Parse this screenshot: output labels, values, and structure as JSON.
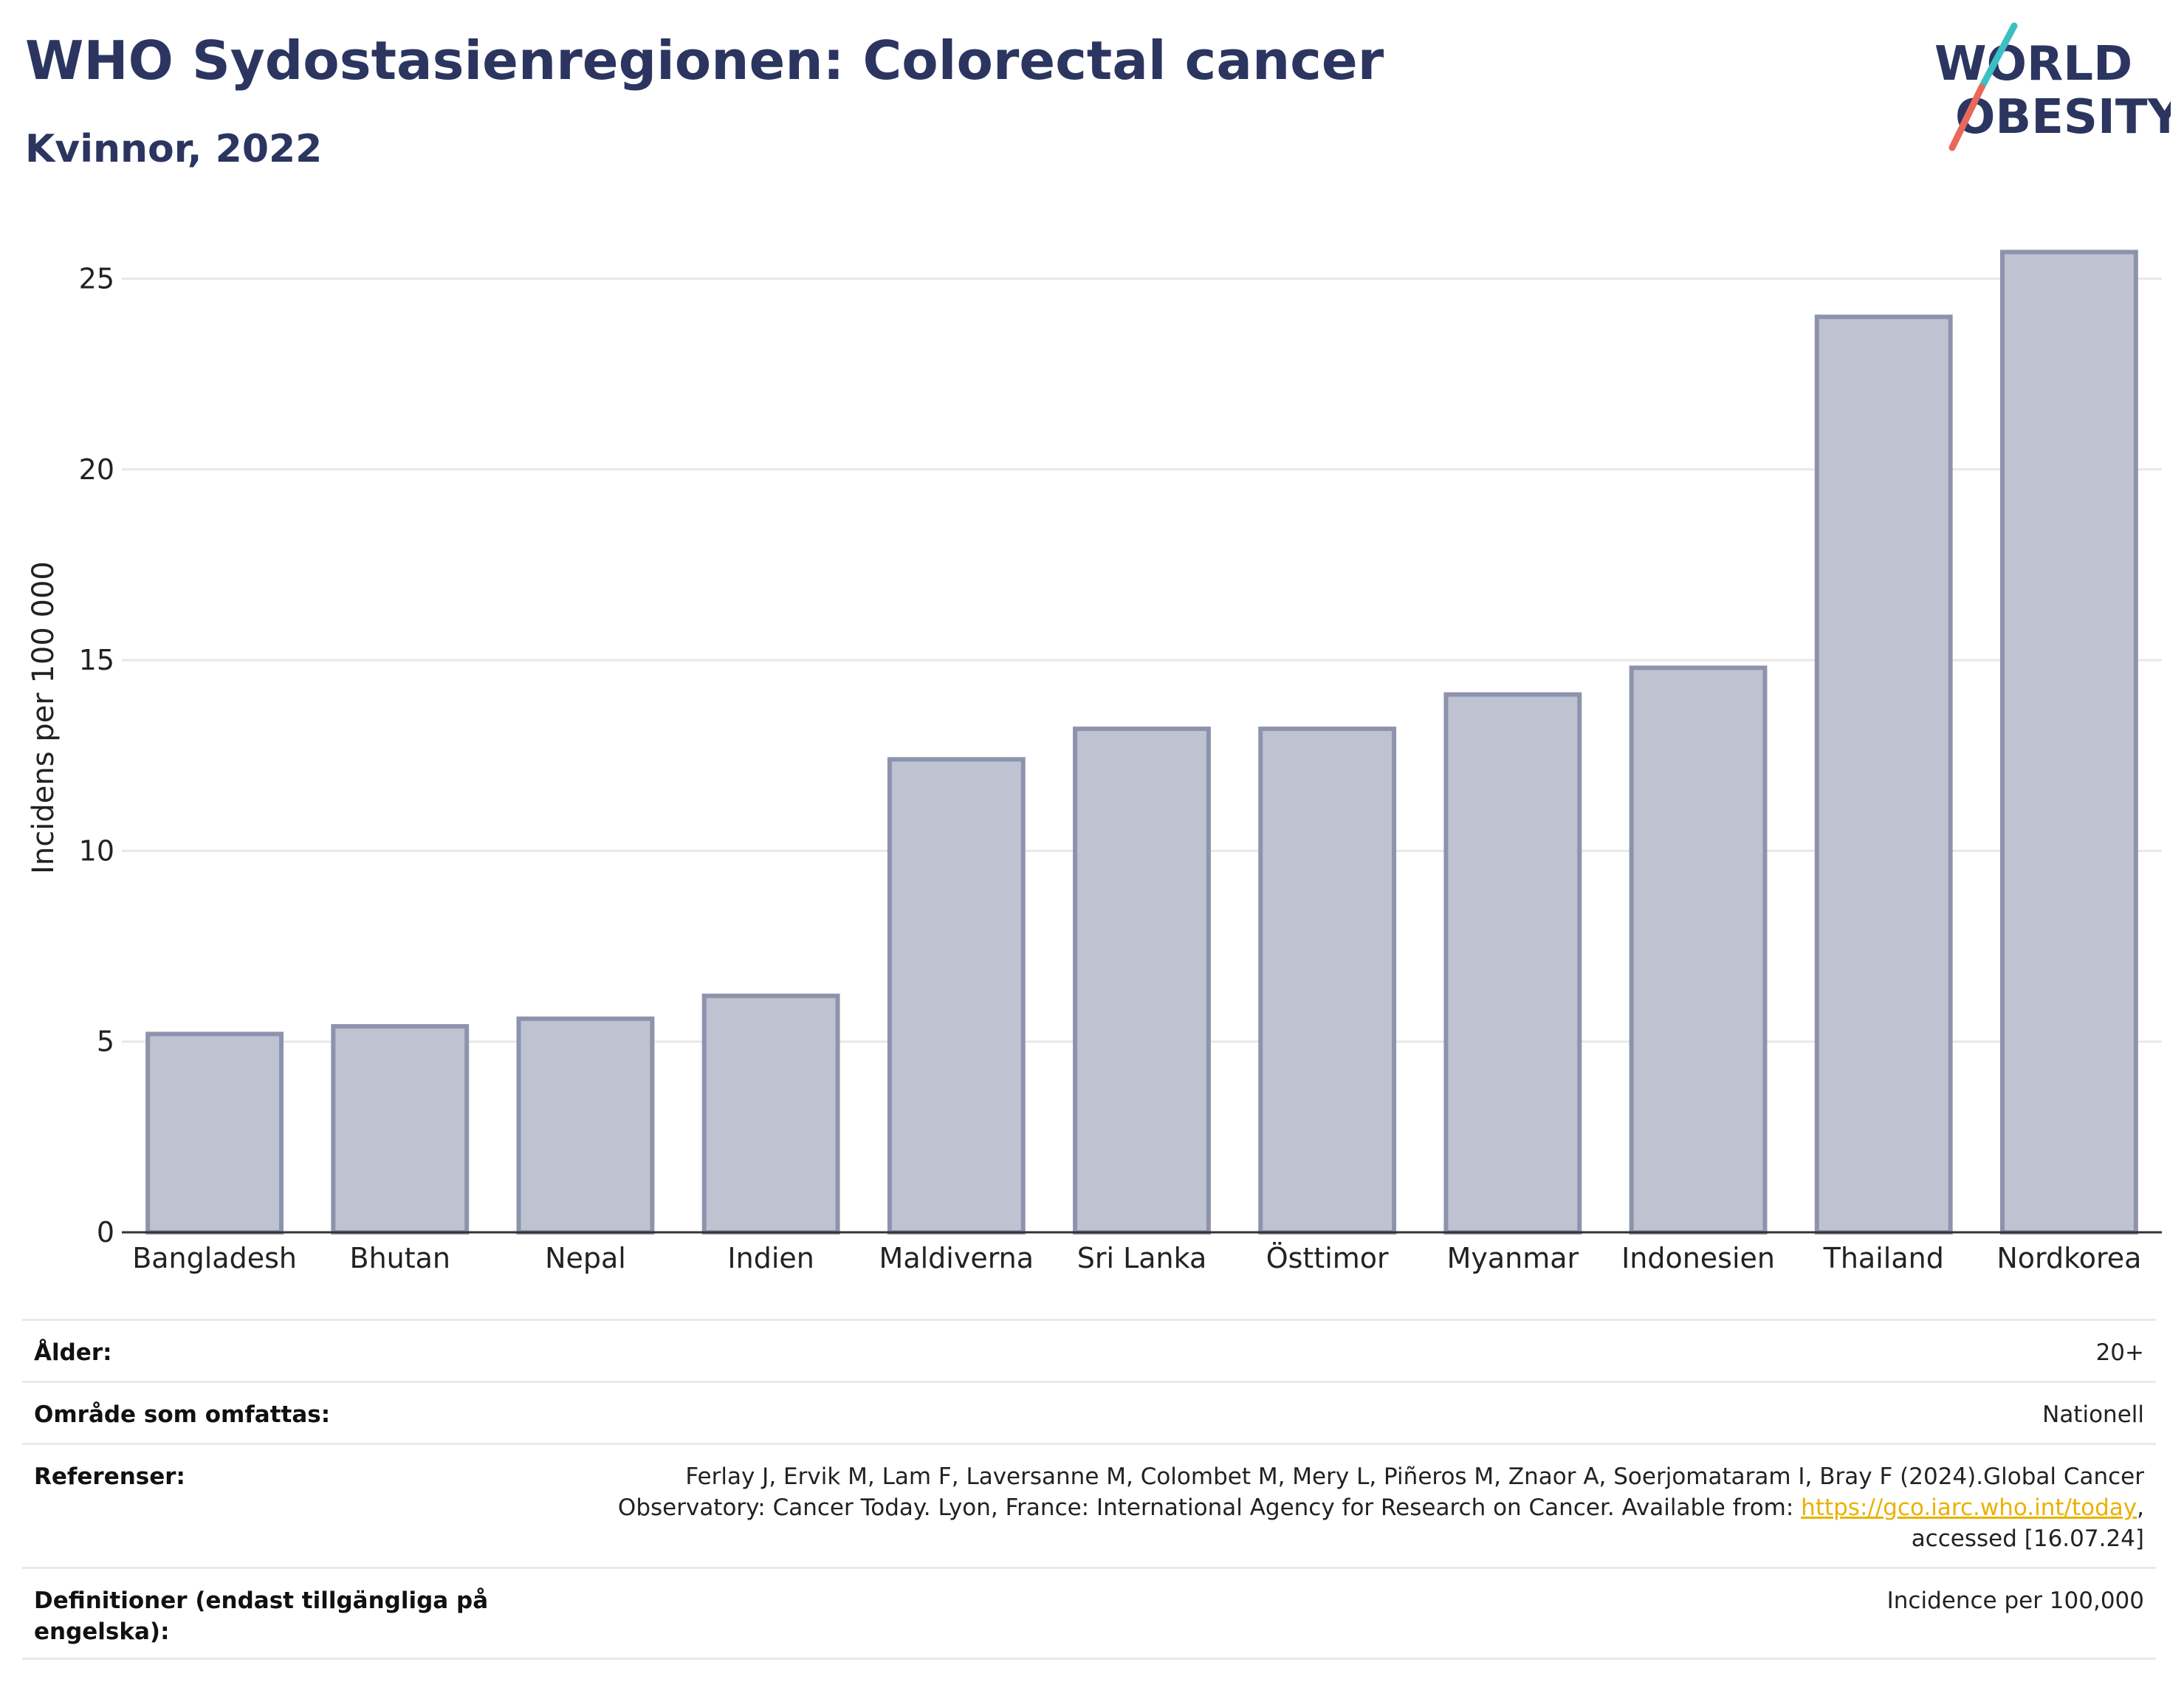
{
  "header": {
    "title": "WHO Sydostasienregionen: Colorectal cancer",
    "subtitle": "Kvinnor, 2022"
  },
  "logo": {
    "line1": "WORLD",
    "line2": "OBESITY",
    "colors": {
      "text": "#2b3560",
      "slash_top": "#3cbfc4",
      "slash_bottom": "#e8685a"
    }
  },
  "chart_data": {
    "type": "bar",
    "title": "WHO Sydostasienregionen: Colorectal cancer",
    "subtitle": "Kvinnor, 2022",
    "xlabel": "",
    "ylabel": "Incidens per 100 000",
    "ylim": [
      0,
      26.5
    ],
    "yticks": [
      0,
      5,
      10,
      15,
      20,
      25
    ],
    "grid": true,
    "categories": [
      "Bangladesh",
      "Bhutan",
      "Nepal",
      "Indien",
      "Maldiverna",
      "Sri Lanka",
      "Östtimor",
      "Myanmar",
      "Indonesien",
      "Thailand",
      "Nordkorea"
    ],
    "values": [
      5.2,
      5.4,
      5.6,
      6.2,
      12.4,
      13.2,
      13.2,
      14.1,
      14.8,
      24.0,
      25.7
    ],
    "colors": {
      "bar_fill": "#bfc2d1",
      "bar_stroke": "#8e93ad",
      "grid": "#e8e8e8",
      "axis": "#333333"
    }
  },
  "meta": {
    "rows": [
      {
        "key": "Ålder:",
        "value": "20+"
      },
      {
        "key": "Område som omfattas:",
        "value": "Nationell"
      },
      {
        "key": "Referenser:",
        "value_pre": "Ferlay J, Ervik M, Lam F, Laversanne M, Colombet M, Mery L, Piñeros M, Znaor A, Soerjomataram I, Bray F (2024).Global Cancer Observatory: Cancer Today. Lyon, France: International Agency for Research on Cancer. Available from: ",
        "link": "https://gco.iarc.who.int/today",
        "value_post": ", accessed [16.07.24]"
      },
      {
        "key": "Definitioner (endast tillgängliga på engelska):",
        "value": "Incidence per 100,000"
      }
    ]
  }
}
